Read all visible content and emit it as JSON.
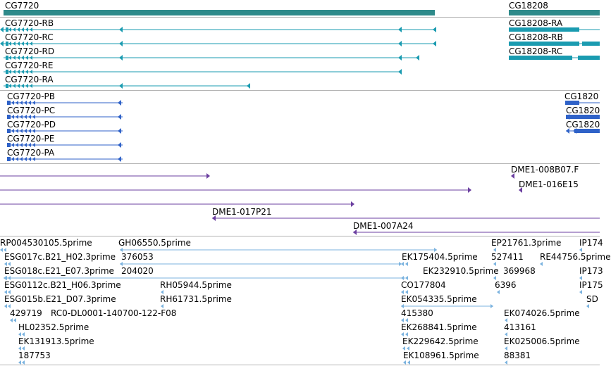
{
  "colors": {
    "gene": "#2e8a8a",
    "transcript": "#1a9bb0",
    "protein": "#2f62c8",
    "clone": "#6b3fa0",
    "est": "#7bb3df",
    "divider": "#b4b4b4"
  },
  "icons": {
    "left_arrowhead": "left-arrowhead-icon",
    "right_arrowhead": "right-arrowhead-icon"
  },
  "genes": [
    {
      "label": "CG7720"
    },
    {
      "label": "CG18208"
    }
  ],
  "transcripts": [
    {
      "label": "CG7720-RB"
    },
    {
      "label": "CG7720-RC"
    },
    {
      "label": "CG7720-RD"
    },
    {
      "label": "CG7720-RE"
    },
    {
      "label": "CG7720-RA"
    },
    {
      "label": "CG18208-RA"
    },
    {
      "label": "CG18208-RB"
    },
    {
      "label": "CG18208-RC"
    }
  ],
  "proteins": [
    {
      "label": "CG7720-PB"
    },
    {
      "label": "CG7720-PC"
    },
    {
      "label": "CG7720-PD"
    },
    {
      "label": "CG7720-PE"
    },
    {
      "label": "CG7720-PA"
    },
    {
      "label": "CG1820"
    },
    {
      "label": "CG1820"
    },
    {
      "label": "CG1820"
    }
  ],
  "clones": [
    {
      "label": "DME1-008B07.F"
    },
    {
      "label": "DME1-016E15"
    },
    {
      "label": "DME1-017P21"
    },
    {
      "label": "DME1-007A24"
    }
  ],
  "ests": [
    {
      "label": "RP004530105.5prime"
    },
    {
      "label": "GH06550.5prime"
    },
    {
      "label": "EP21761.3prime"
    },
    {
      "label": "IP174"
    },
    {
      "label": "ESG017c.B21_H02.3prime"
    },
    {
      "label": "376053"
    },
    {
      "label": "EK175404.5prime"
    },
    {
      "label": "527411"
    },
    {
      "label": "RE44756.5prime"
    },
    {
      "label": "ESG018c.E21_E07.3prime"
    },
    {
      "label": "204020"
    },
    {
      "label": "EK232910.5prime"
    },
    {
      "label": "369968"
    },
    {
      "label": "IP173"
    },
    {
      "label": "ESG0112c.B21_H06.3prime"
    },
    {
      "label": "RH05944.5prime"
    },
    {
      "label": "CO177804"
    },
    {
      "label": "6396"
    },
    {
      "label": "IP175"
    },
    {
      "label": "ESG015b.E21_D07.3prime"
    },
    {
      "label": "RH61731.5prime"
    },
    {
      "label": "EK054335.5prime"
    },
    {
      "label": "SD"
    },
    {
      "label": "429719"
    },
    {
      "label": "RC0-DL0001-140700-122-F08"
    },
    {
      "label": "415380"
    },
    {
      "label": "EK074026.5prime"
    },
    {
      "label": "HL02352.5prime"
    },
    {
      "label": "EK268841.5prime"
    },
    {
      "label": "413161"
    },
    {
      "label": "EK131913.5prime"
    },
    {
      "label": "EK229642.5prime"
    },
    {
      "label": "EK025006.5prime"
    },
    {
      "label": "187753"
    },
    {
      "label": "EK108961.5prime"
    },
    {
      "label": "88381"
    }
  ]
}
